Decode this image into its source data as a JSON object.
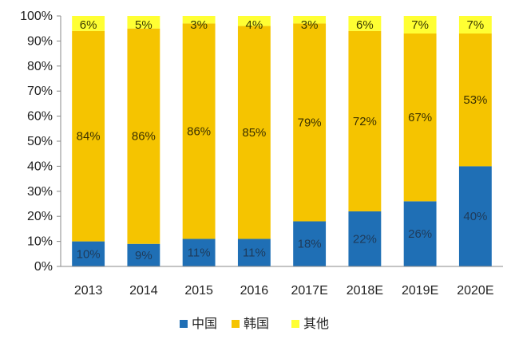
{
  "chart_data": {
    "type": "bar",
    "stacked": true,
    "categories": [
      "2013",
      "2014",
      "2015",
      "2016",
      "2017E",
      "2018E",
      "2019E",
      "2020E"
    ],
    "series": [
      {
        "name": "中国",
        "color": "#1f6fb5",
        "values": [
          10,
          9,
          11,
          11,
          18,
          22,
          26,
          40
        ],
        "labels": [
          "10%",
          "9%",
          "11%",
          "11%",
          "18%",
          "22%",
          "26%",
          "40%"
        ]
      },
      {
        "name": "韩国",
        "color": "#f5c400",
        "values": [
          84,
          86,
          86,
          85,
          79,
          72,
          67,
          53
        ],
        "labels": [
          "84%",
          "86%",
          "86%",
          "85%",
          "79%",
          "72%",
          "67%",
          "53%"
        ]
      },
      {
        "name": "其他",
        "color": "#ffff33",
        "values": [
          6,
          5,
          3,
          4,
          3,
          6,
          7,
          7
        ],
        "labels": [
          "6%",
          "5%",
          "3%",
          "4%",
          "3%",
          "6%",
          "7%",
          "7%"
        ]
      }
    ],
    "ylim": [
      0,
      100
    ],
    "yticks": [
      0,
      10,
      20,
      30,
      40,
      50,
      60,
      70,
      80,
      90,
      100
    ],
    "ytick_labels": [
      "0%",
      "10%",
      "20%",
      "30%",
      "40%",
      "50%",
      "60%",
      "70%",
      "80%",
      "90%",
      "100%"
    ],
    "grid": false,
    "legend": "bottom-center"
  }
}
